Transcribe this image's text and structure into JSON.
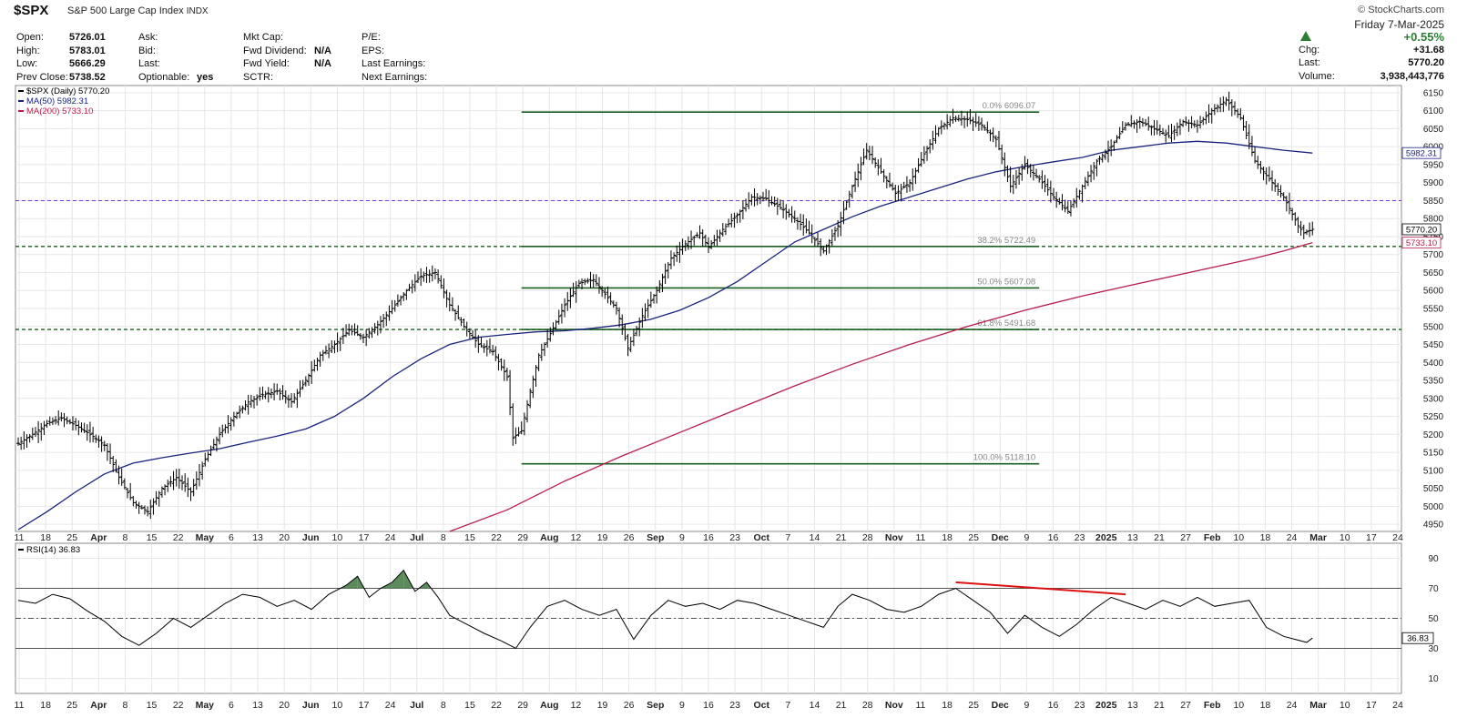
{
  "header": {
    "ticker": "$SPX",
    "description": "S&P 500 Large Cap Index",
    "exchange": "INDX",
    "brand": "© StockCharts.com",
    "date": "Friday   7-Mar-2025",
    "change_pct": "+0.55%",
    "col1": [
      {
        "label": "Open:",
        "value": "5726.01"
      },
      {
        "label": "High:",
        "value": "5783.01"
      },
      {
        "label": "Low:",
        "value": "5666.29"
      },
      {
        "label": "Prev Close:",
        "value": "5738.52"
      }
    ],
    "col2": [
      {
        "label": "Ask:",
        "value": ""
      },
      {
        "label": "Bid:",
        "value": ""
      },
      {
        "label": "Last:",
        "value": ""
      },
      {
        "label": "Optionable:",
        "value": "yes"
      }
    ],
    "col3": [
      {
        "label": "Mkt Cap:",
        "value": ""
      },
      {
        "label": "Fwd Dividend:",
        "value": "N/A"
      },
      {
        "label": "Fwd Yield:",
        "value": "N/A"
      },
      {
        "label": "SCTR:",
        "value": ""
      }
    ],
    "col4": [
      {
        "label": "P/E:",
        "value": ""
      },
      {
        "label": "EPS:",
        "value": ""
      },
      {
        "label": "Last Earnings:",
        "value": ""
      },
      {
        "label": "Next Earnings:",
        "value": ""
      }
    ],
    "right": [
      {
        "label": "Chg:",
        "value": "+31.68"
      },
      {
        "label": "Last:",
        "value": "5770.20"
      },
      {
        "label": "Volume:",
        "value": "3,938,443,776"
      }
    ]
  },
  "colors": {
    "price": "#000000",
    "ma50": "#1a237e",
    "ma200": "#b71c4a",
    "fib": "#1b5e20",
    "support": "#1b5e20",
    "resistance": "#7b3fd6",
    "rsi_line": "#000000",
    "rsi_overbought_fill": "#5b8a5b",
    "trendline": "#dd1111",
    "grid": "#e6e6e6",
    "up": "#2e7d32"
  },
  "chart_data": [
    {
      "type": "ohlc",
      "legend": [
        "$SPX (Daily) 5770.20",
        "MA(50) 5982.31",
        "MA(200) 5733.10"
      ],
      "ylim": [
        4930,
        6170
      ],
      "y_ticks": [
        4950,
        5000,
        5050,
        5100,
        5150,
        5200,
        5250,
        5300,
        5350,
        5400,
        5450,
        5500,
        5550,
        5600,
        5650,
        5700,
        5750,
        5800,
        5850,
        5900,
        5950,
        6000,
        6050,
        6100,
        6150
      ],
      "x_labels": [
        "11",
        "18",
        "25",
        "Apr",
        "8",
        "15",
        "22",
        "May",
        "6",
        "13",
        "20",
        "Jun",
        "10",
        "17",
        "24",
        "Jul",
        "8",
        "15",
        "22",
        "29",
        "Aug",
        "12",
        "19",
        "26",
        "Sep",
        "9",
        "16",
        "23",
        "Oct",
        "7",
        "14",
        "21",
        "28",
        "Nov",
        "11",
        "18",
        "25",
        "Dec",
        "9",
        "16",
        "23",
        "2025",
        "13",
        "21",
        "27",
        "Feb",
        "10",
        "18",
        "24",
        "Mar",
        "10",
        "17",
        "24"
      ],
      "x_label_bold": [
        "Apr",
        "May",
        "Jun",
        "Jul",
        "Aug",
        "Sep",
        "Oct",
        "Nov",
        "Dec",
        "2025",
        "Feb",
        "Mar"
      ],
      "price_path": [
        [
          0,
          5175
        ],
        [
          5,
          5200
        ],
        [
          10,
          5230
        ],
        [
          15,
          5245
        ],
        [
          20,
          5225
        ],
        [
          25,
          5200
        ],
        [
          30,
          5170
        ],
        [
          35,
          5080
        ],
        [
          40,
          5010
        ],
        [
          45,
          4985
        ],
        [
          50,
          5050
        ],
        [
          55,
          5080
        ],
        [
          60,
          5040
        ],
        [
          65,
          5130
        ],
        [
          70,
          5200
        ],
        [
          75,
          5250
        ],
        [
          80,
          5290
        ],
        [
          85,
          5310
        ],
        [
          90,
          5320
        ],
        [
          95,
          5290
        ],
        [
          100,
          5350
        ],
        [
          105,
          5420
        ],
        [
          110,
          5450
        ],
        [
          115,
          5490
        ],
        [
          120,
          5470
        ],
        [
          125,
          5505
        ],
        [
          130,
          5550
        ],
        [
          135,
          5600
        ],
        [
          140,
          5640
        ],
        [
          145,
          5650
        ],
        [
          150,
          5560
        ],
        [
          155,
          5500
        ],
        [
          160,
          5450
        ],
        [
          165,
          5430
        ],
        [
          170,
          5360
        ],
        [
          172,
          5190
        ],
        [
          175,
          5210
        ],
        [
          178,
          5320
        ],
        [
          181,
          5420
        ],
        [
          185,
          5480
        ],
        [
          190,
          5560
        ],
        [
          195,
          5620
        ],
        [
          200,
          5630
        ],
        [
          203,
          5600
        ],
        [
          208,
          5550
        ],
        [
          212,
          5440
        ],
        [
          217,
          5530
        ],
        [
          222,
          5600
        ],
        [
          227,
          5690
        ],
        [
          232,
          5730
        ],
        [
          237,
          5760
        ],
        [
          240,
          5720
        ],
        [
          245,
          5770
        ],
        [
          250,
          5810
        ],
        [
          255,
          5860
        ],
        [
          260,
          5855
        ],
        [
          265,
          5830
        ],
        [
          270,
          5800
        ],
        [
          275,
          5760
        ],
        [
          280,
          5710
        ],
        [
          285,
          5780
        ],
        [
          290,
          5890
        ],
        [
          295,
          5990
        ],
        [
          300,
          5930
        ],
        [
          305,
          5870
        ],
        [
          310,
          5900
        ],
        [
          315,
          5980
        ],
        [
          320,
          6050
        ],
        [
          325,
          6080
        ],
        [
          330,
          6075
        ],
        [
          335,
          6060
        ],
        [
          340,
          6020
        ],
        [
          345,
          5890
        ],
        [
          350,
          5950
        ],
        [
          355,
          5910
        ],
        [
          360,
          5860
        ],
        [
          365,
          5820
        ],
        [
          370,
          5890
        ],
        [
          375,
          5960
        ],
        [
          380,
          6000
        ],
        [
          385,
          6060
        ],
        [
          390,
          6070
        ],
        [
          395,
          6050
        ],
        [
          400,
          6030
        ],
        [
          405,
          6070
        ],
        [
          410,
          6060
        ],
        [
          415,
          6100
        ],
        [
          420,
          6130
        ],
        [
          425,
          6080
        ],
        [
          430,
          5960
        ],
        [
          435,
          5910
        ],
        [
          440,
          5860
        ],
        [
          445,
          5780
        ],
        [
          447,
          5760
        ],
        [
          450,
          5770.2
        ]
      ],
      "ma50": [
        [
          0,
          4935
        ],
        [
          10,
          4985
        ],
        [
          20,
          5040
        ],
        [
          30,
          5090
        ],
        [
          40,
          5120
        ],
        [
          50,
          5135
        ],
        [
          60,
          5148
        ],
        [
          70,
          5160
        ],
        [
          80,
          5178
        ],
        [
          90,
          5195
        ],
        [
          100,
          5215
        ],
        [
          110,
          5250
        ],
        [
          120,
          5300
        ],
        [
          130,
          5360
        ],
        [
          140,
          5410
        ],
        [
          150,
          5450
        ],
        [
          160,
          5470
        ],
        [
          170,
          5478
        ],
        [
          180,
          5485
        ],
        [
          190,
          5488
        ],
        [
          200,
          5495
        ],
        [
          210,
          5505
        ],
        [
          220,
          5520
        ],
        [
          230,
          5545
        ],
        [
          240,
          5580
        ],
        [
          250,
          5625
        ],
        [
          260,
          5680
        ],
        [
          270,
          5735
        ],
        [
          280,
          5770
        ],
        [
          290,
          5805
        ],
        [
          300,
          5835
        ],
        [
          310,
          5860
        ],
        [
          320,
          5885
        ],
        [
          330,
          5910
        ],
        [
          340,
          5930
        ],
        [
          350,
          5945
        ],
        [
          360,
          5958
        ],
        [
          370,
          5970
        ],
        [
          380,
          5990
        ],
        [
          390,
          6000
        ],
        [
          400,
          6010
        ],
        [
          410,
          6015
        ],
        [
          420,
          6010
        ],
        [
          430,
          6000
        ],
        [
          440,
          5990
        ],
        [
          450,
          5982.31
        ]
      ],
      "ma200": [
        [
          150,
          4930
        ],
        [
          170,
          4990
        ],
        [
          190,
          5070
        ],
        [
          210,
          5140
        ],
        [
          230,
          5205
        ],
        [
          250,
          5270
        ],
        [
          270,
          5335
        ],
        [
          290,
          5395
        ],
        [
          310,
          5450
        ],
        [
          330,
          5500
        ],
        [
          350,
          5545
        ],
        [
          370,
          5585
        ],
        [
          390,
          5620
        ],
        [
          410,
          5655
        ],
        [
          430,
          5690
        ],
        [
          440,
          5710
        ],
        [
          450,
          5733.1
        ]
      ],
      "fib_levels": [
        {
          "pct": "0.0%",
          "value": 6096.07,
          "label": "0.0% 6096.07"
        },
        {
          "pct": "38.2%",
          "value": 5722.49,
          "label": "38.2% 5722.49"
        },
        {
          "pct": "50.0%",
          "value": 5607.08,
          "label": "50.0% 5607.08"
        },
        {
          "pct": "61.8%",
          "value": 5491.68,
          "label": "61.8% 5491.68"
        },
        {
          "pct": "100.0%",
          "value": 5118.1,
          "label": "100.0% 5118.10"
        }
      ],
      "fib_x_range": [
        175,
        355
      ],
      "horizontal_lines": [
        {
          "value": 5850,
          "style": "dashed",
          "color": "resistance"
        },
        {
          "value": 5722.49,
          "style": "dashed",
          "color": "support"
        },
        {
          "value": 5491.68,
          "style": "dashed",
          "color": "support"
        }
      ],
      "right_value_labels": [
        {
          "value": 5982.31,
          "text": "5982.31"
        },
        {
          "value": 5770.2,
          "text": "5770.20"
        },
        {
          "value": 5733.1,
          "text": "5733.10"
        }
      ]
    },
    {
      "type": "line",
      "legend": [
        "RSI(14) 36.83"
      ],
      "ylim": [
        0,
        100
      ],
      "y_ticks": [
        10,
        30,
        50,
        70,
        90
      ],
      "reference_lines": [
        30,
        50,
        70
      ],
      "last_value": "36.83",
      "rsi": [
        [
          0,
          62
        ],
        [
          6,
          60
        ],
        [
          12,
          66
        ],
        [
          18,
          63
        ],
        [
          24,
          55
        ],
        [
          30,
          48
        ],
        [
          36,
          38
        ],
        [
          42,
          32
        ],
        [
          48,
          40
        ],
        [
          54,
          50
        ],
        [
          60,
          44
        ],
        [
          66,
          52
        ],
        [
          72,
          60
        ],
        [
          78,
          66
        ],
        [
          84,
          64
        ],
        [
          90,
          58
        ],
        [
          96,
          62
        ],
        [
          102,
          56
        ],
        [
          108,
          66
        ],
        [
          114,
          72
        ],
        [
          118,
          78
        ],
        [
          122,
          64
        ],
        [
          126,
          70
        ],
        [
          130,
          74
        ],
        [
          134,
          82
        ],
        [
          138,
          68
        ],
        [
          142,
          74
        ],
        [
          146,
          64
        ],
        [
          150,
          52
        ],
        [
          156,
          46
        ],
        [
          162,
          40
        ],
        [
          168,
          35
        ],
        [
          173,
          30
        ],
        [
          178,
          44
        ],
        [
          184,
          58
        ],
        [
          190,
          62
        ],
        [
          196,
          56
        ],
        [
          202,
          52
        ],
        [
          208,
          56
        ],
        [
          214,
          36
        ],
        [
          220,
          52
        ],
        [
          226,
          62
        ],
        [
          232,
          58
        ],
        [
          238,
          60
        ],
        [
          244,
          56
        ],
        [
          250,
          62
        ],
        [
          256,
          60
        ],
        [
          262,
          56
        ],
        [
          268,
          52
        ],
        [
          274,
          48
        ],
        [
          280,
          44
        ],
        [
          285,
          58
        ],
        [
          290,
          66
        ],
        [
          296,
          62
        ],
        [
          302,
          56
        ],
        [
          308,
          54
        ],
        [
          314,
          58
        ],
        [
          320,
          66
        ],
        [
          326,
          70
        ],
        [
          332,
          62
        ],
        [
          338,
          54
        ],
        [
          344,
          40
        ],
        [
          350,
          52
        ],
        [
          356,
          44
        ],
        [
          362,
          38
        ],
        [
          368,
          46
        ],
        [
          374,
          56
        ],
        [
          380,
          64
        ],
        [
          386,
          60
        ],
        [
          392,
          56
        ],
        [
          398,
          62
        ],
        [
          404,
          58
        ],
        [
          410,
          64
        ],
        [
          416,
          58
        ],
        [
          422,
          60
        ],
        [
          428,
          62
        ],
        [
          434,
          44
        ],
        [
          440,
          38
        ],
        [
          444,
          36
        ],
        [
          448,
          34
        ],
        [
          450,
          36.83
        ]
      ],
      "trendline": [
        [
          326,
          74
        ],
        [
          385,
          66
        ]
      ]
    }
  ]
}
